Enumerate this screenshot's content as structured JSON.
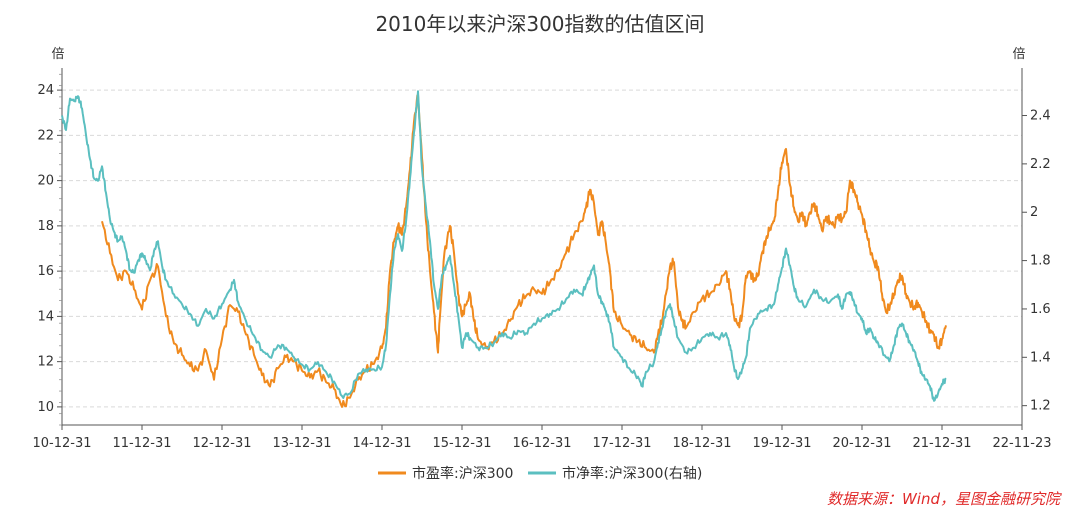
{
  "chart_data": {
    "type": "line",
    "title": "2010年以来沪深300指数的估值区间",
    "y_left_unit": "倍",
    "y_right_unit": "倍",
    "x_ticks": [
      "10-12-31",
      "11-12-31",
      "12-12-31",
      "13-12-31",
      "14-12-31",
      "15-12-31",
      "16-12-31",
      "17-12-31",
      "18-12-31",
      "19-12-31",
      "20-12-31",
      "21-12-31",
      "22-11-23"
    ],
    "y_left_ticks": [
      "10",
      "12",
      "14",
      "16",
      "18",
      "20",
      "22",
      "24"
    ],
    "y_right_ticks": [
      "1.2",
      "1.4",
      "1.6",
      "1.8",
      "2",
      "2.2",
      "2.4"
    ],
    "y_left_range": [
      9.2,
      24.8
    ],
    "y_right_range": [
      1.12,
      2.58
    ],
    "grid": "horizontal dashed",
    "legend_position": "bottom-center",
    "series": [
      {
        "name": "市盈率:沪深300",
        "axis": "left",
        "color": "#f08a1e",
        "points": [
          [
            0.5,
            18.2
          ],
          [
            0.6,
            16.8
          ],
          [
            0.7,
            15.6
          ],
          [
            0.8,
            16.0
          ],
          [
            0.9,
            15.2
          ],
          [
            1.0,
            14.3
          ],
          [
            1.1,
            15.6
          ],
          [
            1.2,
            16.2
          ],
          [
            1.3,
            14.0
          ],
          [
            1.4,
            12.8
          ],
          [
            1.5,
            12.3
          ],
          [
            1.6,
            11.8
          ],
          [
            1.7,
            11.6
          ],
          [
            1.8,
            12.5
          ],
          [
            1.9,
            11.2
          ],
          [
            2.0,
            13.0
          ],
          [
            2.1,
            14.5
          ],
          [
            2.2,
            14.2
          ],
          [
            2.3,
            13.2
          ],
          [
            2.4,
            12.3
          ],
          [
            2.5,
            11.4
          ],
          [
            2.6,
            10.9
          ],
          [
            2.7,
            11.7
          ],
          [
            2.8,
            12.2
          ],
          [
            2.9,
            12.0
          ],
          [
            3.0,
            11.6
          ],
          [
            3.1,
            11.3
          ],
          [
            3.2,
            11.6
          ],
          [
            3.3,
            11.1
          ],
          [
            3.4,
            10.8
          ],
          [
            3.5,
            10.0
          ],
          [
            3.6,
            10.4
          ],
          [
            3.7,
            11.2
          ],
          [
            3.8,
            11.6
          ],
          [
            3.9,
            11.9
          ],
          [
            4.0,
            12.6
          ],
          [
            4.05,
            13.5
          ],
          [
            4.1,
            16.0
          ],
          [
            4.15,
            17.3
          ],
          [
            4.2,
            18.0
          ],
          [
            4.25,
            17.6
          ],
          [
            4.3,
            18.8
          ],
          [
            4.35,
            20.5
          ],
          [
            4.4,
            22.6
          ],
          [
            4.45,
            23.8
          ],
          [
            4.5,
            21.0
          ],
          [
            4.55,
            18.2
          ],
          [
            4.6,
            16.0
          ],
          [
            4.65,
            14.2
          ],
          [
            4.7,
            12.4
          ],
          [
            4.72,
            13.8
          ],
          [
            4.78,
            16.8
          ],
          [
            4.85,
            18.0
          ],
          [
            4.9,
            16.8
          ],
          [
            4.95,
            15.0
          ],
          [
            5.0,
            14.0
          ],
          [
            5.05,
            14.5
          ],
          [
            5.1,
            15.0
          ],
          [
            5.15,
            13.8
          ],
          [
            5.2,
            13.0
          ],
          [
            5.3,
            12.6
          ],
          [
            5.4,
            12.9
          ],
          [
            5.5,
            13.2
          ],
          [
            5.6,
            13.8
          ],
          [
            5.7,
            14.5
          ],
          [
            5.8,
            14.9
          ],
          [
            5.9,
            15.2
          ],
          [
            6.0,
            15.0
          ],
          [
            6.1,
            15.5
          ],
          [
            6.2,
            16.0
          ],
          [
            6.3,
            16.8
          ],
          [
            6.4,
            17.6
          ],
          [
            6.5,
            18.2
          ],
          [
            6.55,
            18.8
          ],
          [
            6.6,
            19.6
          ],
          [
            6.65,
            19.0
          ],
          [
            6.7,
            17.6
          ],
          [
            6.75,
            18.2
          ],
          [
            6.8,
            17.2
          ],
          [
            6.85,
            16.0
          ],
          [
            6.9,
            14.2
          ],
          [
            7.0,
            13.6
          ],
          [
            7.1,
            13.2
          ],
          [
            7.2,
            12.9
          ],
          [
            7.3,
            12.6
          ],
          [
            7.4,
            12.4
          ],
          [
            7.45,
            13.2
          ],
          [
            7.5,
            13.8
          ],
          [
            7.55,
            15.0
          ],
          [
            7.6,
            16.2
          ],
          [
            7.65,
            16.4
          ],
          [
            7.7,
            14.4
          ],
          [
            7.75,
            13.8
          ],
          [
            7.8,
            13.5
          ],
          [
            7.9,
            14.2
          ],
          [
            8.0,
            14.8
          ],
          [
            8.1,
            15.0
          ],
          [
            8.2,
            15.4
          ],
          [
            8.3,
            16.0
          ],
          [
            8.35,
            15.2
          ],
          [
            8.4,
            14.0
          ],
          [
            8.45,
            13.6
          ],
          [
            8.5,
            14.0
          ],
          [
            8.55,
            15.8
          ],
          [
            8.6,
            16.0
          ],
          [
            8.65,
            15.6
          ],
          [
            8.7,
            15.8
          ],
          [
            8.75,
            16.8
          ],
          [
            8.8,
            17.4
          ],
          [
            8.85,
            17.9
          ],
          [
            8.9,
            18.2
          ],
          [
            8.95,
            19.5
          ],
          [
            9.0,
            20.8
          ],
          [
            9.05,
            21.4
          ],
          [
            9.1,
            19.8
          ],
          [
            9.15,
            18.8
          ],
          [
            9.2,
            18.2
          ],
          [
            9.25,
            18.6
          ],
          [
            9.3,
            18.0
          ],
          [
            9.35,
            18.6
          ],
          [
            9.4,
            19.0
          ],
          [
            9.45,
            18.5
          ],
          [
            9.5,
            17.8
          ],
          [
            9.55,
            18.4
          ],
          [
            9.6,
            18.2
          ],
          [
            9.65,
            18.0
          ],
          [
            9.7,
            18.5
          ],
          [
            9.75,
            18.3
          ],
          [
            9.8,
            18.6
          ],
          [
            9.85,
            20.0
          ],
          [
            9.9,
            19.6
          ],
          [
            9.95,
            19.0
          ],
          [
            10.0,
            18.5
          ],
          [
            10.05,
            17.8
          ],
          [
            10.1,
            17.0
          ],
          [
            10.15,
            16.4
          ],
          [
            10.2,
            16.2
          ],
          [
            10.25,
            15.0
          ],
          [
            10.3,
            14.2
          ],
          [
            10.35,
            14.5
          ],
          [
            10.4,
            15.0
          ],
          [
            10.45,
            15.6
          ],
          [
            10.5,
            15.8
          ],
          [
            10.55,
            15.0
          ],
          [
            10.6,
            14.6
          ],
          [
            10.65,
            14.4
          ],
          [
            10.7,
            14.6
          ],
          [
            10.75,
            14.2
          ],
          [
            10.8,
            13.8
          ],
          [
            10.85,
            13.4
          ],
          [
            10.9,
            13.2
          ],
          [
            10.95,
            12.6
          ],
          [
            11.0,
            13.0
          ],
          [
            11.05,
            13.6
          ]
        ]
      },
      {
        "name": "市净率:沪深300(右轴)",
        "axis": "right",
        "color": "#5bbfc0",
        "points": [
          [
            0.0,
            2.4
          ],
          [
            0.05,
            2.34
          ],
          [
            0.1,
            2.47
          ],
          [
            0.15,
            2.46
          ],
          [
            0.2,
            2.48
          ],
          [
            0.25,
            2.43
          ],
          [
            0.3,
            2.32
          ],
          [
            0.35,
            2.22
          ],
          [
            0.4,
            2.14
          ],
          [
            0.45,
            2.13
          ],
          [
            0.5,
            2.19
          ],
          [
            0.55,
            2.08
          ],
          [
            0.6,
            1.97
          ],
          [
            0.65,
            1.92
          ],
          [
            0.7,
            1.88
          ],
          [
            0.75,
            1.9
          ],
          [
            0.8,
            1.84
          ],
          [
            0.85,
            1.76
          ],
          [
            0.9,
            1.75
          ],
          [
            0.95,
            1.8
          ],
          [
            1.0,
            1.83
          ],
          [
            1.05,
            1.8
          ],
          [
            1.1,
            1.76
          ],
          [
            1.15,
            1.84
          ],
          [
            1.2,
            1.88
          ],
          [
            1.25,
            1.78
          ],
          [
            1.3,
            1.72
          ],
          [
            1.4,
            1.66
          ],
          [
            1.5,
            1.62
          ],
          [
            1.6,
            1.58
          ],
          [
            1.7,
            1.53
          ],
          [
            1.8,
            1.6
          ],
          [
            1.9,
            1.56
          ],
          [
            2.0,
            1.62
          ],
          [
            2.1,
            1.68
          ],
          [
            2.15,
            1.72
          ],
          [
            2.2,
            1.63
          ],
          [
            2.3,
            1.55
          ],
          [
            2.4,
            1.49
          ],
          [
            2.5,
            1.43
          ],
          [
            2.6,
            1.4
          ],
          [
            2.7,
            1.45
          ],
          [
            2.8,
            1.44
          ],
          [
            2.9,
            1.4
          ],
          [
            3.0,
            1.37
          ],
          [
            3.1,
            1.35
          ],
          [
            3.2,
            1.38
          ],
          [
            3.3,
            1.34
          ],
          [
            3.4,
            1.3
          ],
          [
            3.5,
            1.24
          ],
          [
            3.6,
            1.25
          ],
          [
            3.7,
            1.33
          ],
          [
            3.8,
            1.35
          ],
          [
            3.9,
            1.35
          ],
          [
            4.0,
            1.36
          ],
          [
            4.05,
            1.45
          ],
          [
            4.1,
            1.66
          ],
          [
            4.15,
            1.84
          ],
          [
            4.2,
            1.91
          ],
          [
            4.25,
            1.84
          ],
          [
            4.3,
            1.96
          ],
          [
            4.35,
            2.14
          ],
          [
            4.4,
            2.33
          ],
          [
            4.45,
            2.5
          ],
          [
            4.5,
            2.18
          ],
          [
            4.55,
            2.02
          ],
          [
            4.6,
            1.88
          ],
          [
            4.65,
            1.7
          ],
          [
            4.7,
            1.6
          ],
          [
            4.75,
            1.74
          ],
          [
            4.8,
            1.78
          ],
          [
            4.85,
            1.82
          ],
          [
            4.9,
            1.7
          ],
          [
            4.95,
            1.58
          ],
          [
            5.0,
            1.44
          ],
          [
            5.05,
            1.5
          ],
          [
            5.1,
            1.48
          ],
          [
            5.2,
            1.44
          ],
          [
            5.3,
            1.44
          ],
          [
            5.4,
            1.46
          ],
          [
            5.5,
            1.5
          ],
          [
            5.6,
            1.48
          ],
          [
            5.7,
            1.51
          ],
          [
            5.8,
            1.5
          ],
          [
            5.9,
            1.54
          ],
          [
            6.0,
            1.56
          ],
          [
            6.1,
            1.58
          ],
          [
            6.2,
            1.6
          ],
          [
            6.3,
            1.64
          ],
          [
            6.4,
            1.68
          ],
          [
            6.5,
            1.66
          ],
          [
            6.55,
            1.7
          ],
          [
            6.6,
            1.74
          ],
          [
            6.65,
            1.78
          ],
          [
            6.7,
            1.66
          ],
          [
            6.75,
            1.63
          ],
          [
            6.8,
            1.59
          ],
          [
            6.85,
            1.54
          ],
          [
            6.9,
            1.44
          ],
          [
            7.0,
            1.4
          ],
          [
            7.1,
            1.35
          ],
          [
            7.2,
            1.32
          ],
          [
            7.25,
            1.28
          ],
          [
            7.3,
            1.34
          ],
          [
            7.4,
            1.38
          ],
          [
            7.45,
            1.46
          ],
          [
            7.5,
            1.52
          ],
          [
            7.55,
            1.59
          ],
          [
            7.6,
            1.62
          ],
          [
            7.65,
            1.55
          ],
          [
            7.7,
            1.48
          ],
          [
            7.8,
            1.42
          ],
          [
            7.9,
            1.44
          ],
          [
            8.0,
            1.48
          ],
          [
            8.1,
            1.5
          ],
          [
            8.2,
            1.48
          ],
          [
            8.3,
            1.5
          ],
          [
            8.35,
            1.45
          ],
          [
            8.4,
            1.36
          ],
          [
            8.45,
            1.31
          ],
          [
            8.5,
            1.35
          ],
          [
            8.55,
            1.4
          ],
          [
            8.6,
            1.52
          ],
          [
            8.7,
            1.58
          ],
          [
            8.8,
            1.6
          ],
          [
            8.9,
            1.62
          ],
          [
            8.95,
            1.7
          ],
          [
            9.0,
            1.77
          ],
          [
            9.05,
            1.85
          ],
          [
            9.1,
            1.78
          ],
          [
            9.15,
            1.69
          ],
          [
            9.2,
            1.64
          ],
          [
            9.3,
            1.61
          ],
          [
            9.4,
            1.68
          ],
          [
            9.5,
            1.64
          ],
          [
            9.6,
            1.63
          ],
          [
            9.7,
            1.66
          ],
          [
            9.75,
            1.6
          ],
          [
            9.8,
            1.66
          ],
          [
            9.85,
            1.67
          ],
          [
            9.9,
            1.63
          ],
          [
            9.95,
            1.58
          ],
          [
            10.0,
            1.56
          ],
          [
            10.05,
            1.5
          ],
          [
            10.1,
            1.52
          ],
          [
            10.15,
            1.48
          ],
          [
            10.2,
            1.46
          ],
          [
            10.3,
            1.4
          ],
          [
            10.35,
            1.39
          ],
          [
            10.4,
            1.45
          ],
          [
            10.45,
            1.52
          ],
          [
            10.5,
            1.54
          ],
          [
            10.55,
            1.5
          ],
          [
            10.6,
            1.46
          ],
          [
            10.65,
            1.43
          ],
          [
            10.7,
            1.38
          ],
          [
            10.75,
            1.33
          ],
          [
            10.8,
            1.31
          ],
          [
            10.85,
            1.28
          ],
          [
            10.9,
            1.22
          ],
          [
            10.95,
            1.25
          ],
          [
            11.0,
            1.29
          ],
          [
            11.05,
            1.31
          ]
        ]
      }
    ]
  },
  "source_note": "数据来源：Wind，星图金融研究院"
}
